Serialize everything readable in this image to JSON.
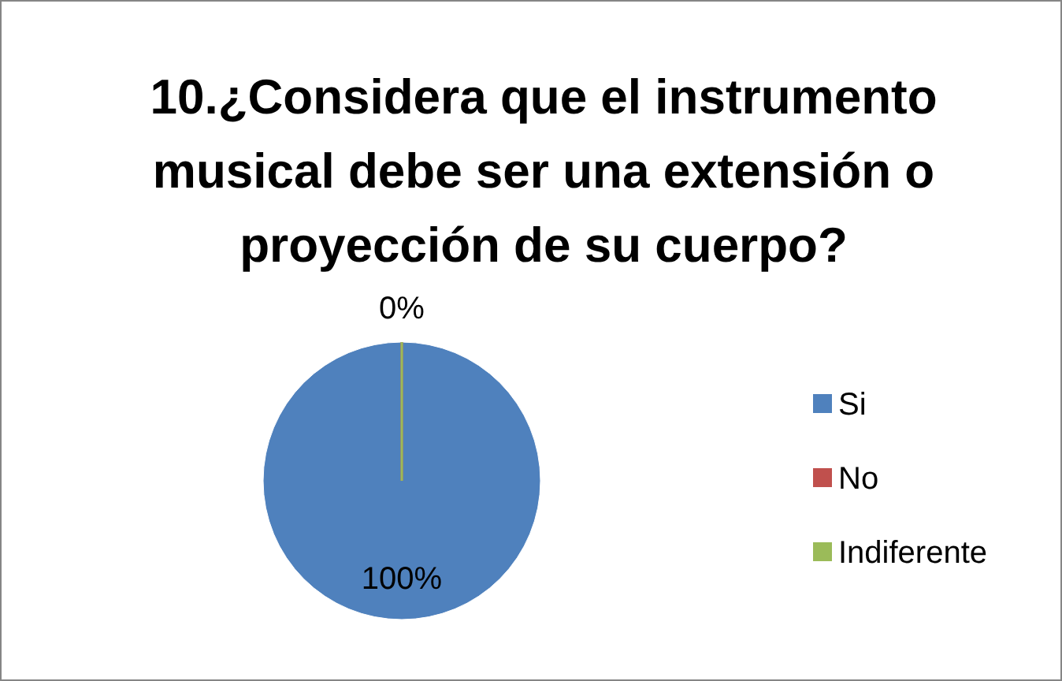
{
  "chart_data": {
    "type": "pie",
    "title": "10.¿Considera que el instrumento musical debe ser una extensión o proyección de su cuerpo?",
    "categories": [
      "Si",
      "No",
      "Indiferente"
    ],
    "values": [
      100,
      0,
      0
    ],
    "colors": [
      "#4f81bd",
      "#c0504d",
      "#9bbb59"
    ],
    "value_labels": [
      "100%",
      "0%",
      null
    ],
    "legend": "right"
  }
}
